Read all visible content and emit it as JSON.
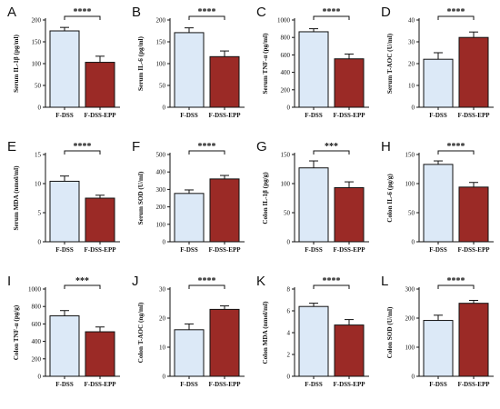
{
  "chart_data": [
    {
      "type": "bar",
      "panel": "A",
      "categories": [
        "F-DSS",
        "F-DSS-EPP"
      ],
      "values": [
        175,
        103
      ],
      "errors": [
        8,
        14
      ],
      "ylabel": "Serum IL-1β (pg/ml)",
      "ylim": [
        0,
        200
      ],
      "yticks": [
        0,
        50,
        100,
        150,
        200
      ],
      "significance": "****",
      "colors": [
        "#dce9f7",
        "#9b2a26"
      ]
    },
    {
      "type": "bar",
      "panel": "B",
      "categories": [
        "F-DSS",
        "F-DSS-EPP"
      ],
      "values": [
        171,
        116
      ],
      "errors": [
        11,
        13
      ],
      "ylabel": "Serum IL-6 (pg/ml)",
      "ylim": [
        0,
        200
      ],
      "yticks": [
        0,
        50,
        100,
        150,
        200
      ],
      "significance": "****",
      "colors": [
        "#dce9f7",
        "#9b2a26"
      ]
    },
    {
      "type": "bar",
      "panel": "C",
      "categories": [
        "F-DSS",
        "F-DSS-EPP"
      ],
      "values": [
        865,
        555
      ],
      "errors": [
        35,
        55
      ],
      "ylabel": "Serum TNF-α (pg/ml)",
      "ylim": [
        0,
        1000
      ],
      "yticks": [
        0,
        200,
        400,
        600,
        800,
        1000
      ],
      "significance": "****",
      "colors": [
        "#dce9f7",
        "#9b2a26"
      ]
    },
    {
      "type": "bar",
      "panel": "D",
      "categories": [
        "F-DSS",
        "F-DSS-EPP"
      ],
      "values": [
        22,
        32
      ],
      "errors": [
        3,
        2.5
      ],
      "ylabel": "Serum T-AOC (U/ml)",
      "ylim": [
        0,
        40
      ],
      "yticks": [
        0,
        10,
        20,
        30,
        40
      ],
      "significance": "****",
      "colors": [
        "#dce9f7",
        "#9b2a26"
      ]
    },
    {
      "type": "bar",
      "panel": "E",
      "categories": [
        "F-DSS",
        "F-DSS-EPP"
      ],
      "values": [
        10.4,
        7.5
      ],
      "errors": [
        0.9,
        0.5
      ],
      "ylabel": "Serum MDA (nmol/ml)",
      "ylim": [
        0,
        15
      ],
      "yticks": [
        0,
        5,
        10,
        15
      ],
      "significance": "****",
      "colors": [
        "#dce9f7",
        "#9b2a26"
      ]
    },
    {
      "type": "bar",
      "panel": "F",
      "categories": [
        "F-DSS",
        "F-DSS-EPP"
      ],
      "values": [
        277,
        360
      ],
      "errors": [
        20,
        20
      ],
      "ylabel": "Serum SOD (U/ml)",
      "ylim": [
        0,
        500
      ],
      "yticks": [
        0,
        100,
        200,
        300,
        400,
        500
      ],
      "significance": "****",
      "colors": [
        "#dce9f7",
        "#9b2a26"
      ]
    },
    {
      "type": "bar",
      "panel": "G",
      "categories": [
        "F-DSS",
        "F-DSS-EPP"
      ],
      "values": [
        127,
        93
      ],
      "errors": [
        12,
        10
      ],
      "ylabel": "Colon IL-1β (pg/g)",
      "ylim": [
        0,
        150
      ],
      "yticks": [
        0,
        50,
        100,
        150
      ],
      "significance": "***",
      "colors": [
        "#dce9f7",
        "#9b2a26"
      ]
    },
    {
      "type": "bar",
      "panel": "H",
      "categories": [
        "F-DSS",
        "F-DSS-EPP"
      ],
      "values": [
        133,
        94
      ],
      "errors": [
        6,
        8
      ],
      "ylabel": "Colon IL-6 (pg/g)",
      "ylim": [
        0,
        150
      ],
      "yticks": [
        0,
        50,
        100,
        150
      ],
      "significance": "****",
      "colors": [
        "#dce9f7",
        "#9b2a26"
      ]
    },
    {
      "type": "bar",
      "panel": "I",
      "categories": [
        "F-DSS",
        "F-DSS-EPP"
      ],
      "values": [
        693,
        510
      ],
      "errors": [
        60,
        55
      ],
      "ylabel": "Colon TNF-α (pg/g)",
      "ylim": [
        0,
        1000
      ],
      "yticks": [
        0,
        200,
        400,
        600,
        800,
        1000
      ],
      "significance": "***",
      "colors": [
        "#dce9f7",
        "#9b2a26"
      ]
    },
    {
      "type": "bar",
      "panel": "J",
      "categories": [
        "F-DSS",
        "F-DSS-EPP"
      ],
      "values": [
        16,
        23
      ],
      "errors": [
        2,
        1.2
      ],
      "ylabel": "Colon T-AOC (ng/ml)",
      "ylim": [
        0,
        30
      ],
      "yticks": [
        0,
        10,
        20,
        30
      ],
      "significance": "****",
      "colors": [
        "#dce9f7",
        "#9b2a26"
      ]
    },
    {
      "type": "bar",
      "panel": "K",
      "categories": [
        "F-DSS",
        "F-DSS-EPP"
      ],
      "values": [
        6.4,
        4.7
      ],
      "errors": [
        0.3,
        0.5
      ],
      "ylabel": "Colon MDA (nmol/ml)",
      "ylim": [
        0,
        8
      ],
      "yticks": [
        0,
        2,
        4,
        6,
        8
      ],
      "significance": "****",
      "colors": [
        "#dce9f7",
        "#9b2a26"
      ]
    },
    {
      "type": "bar",
      "panel": "L",
      "categories": [
        "F-DSS",
        "F-DSS-EPP"
      ],
      "values": [
        192,
        251
      ],
      "errors": [
        18,
        10
      ],
      "ylabel": "Colon SOD (U/ml)",
      "ylim": [
        0,
        300
      ],
      "yticks": [
        0,
        100,
        200,
        300
      ],
      "significance": "****",
      "colors": [
        "#dce9f7",
        "#9b2a26"
      ]
    }
  ]
}
